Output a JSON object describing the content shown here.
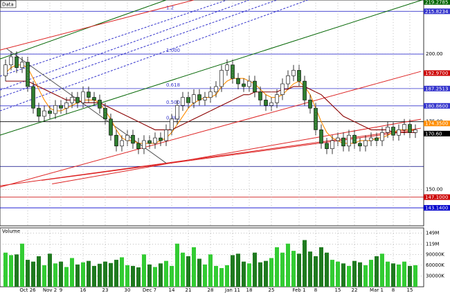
{
  "chart_data": {
    "type": "candlestick",
    "title": "Data",
    "categories": [
      null,
      null,
      null,
      null,
      "Oct 26",
      null,
      null,
      null,
      "Nov 2",
      null,
      "9",
      null,
      null,
      null,
      "16",
      null,
      null,
      null,
      "23",
      null,
      null,
      null,
      "30",
      null,
      null,
      null,
      "Dec 7",
      null,
      null,
      null,
      "14",
      null,
      null,
      "21",
      null,
      null,
      null,
      "28",
      null,
      null,
      null,
      "Jan 11",
      null,
      null,
      "18",
      null,
      null,
      null,
      "25",
      null,
      null,
      null,
      null,
      "Feb 1",
      null,
      null,
      "8",
      null,
      null,
      null,
      "15",
      null,
      null,
      "22",
      null,
      null,
      null,
      "Mar 1",
      null,
      null,
      "8",
      null,
      null,
      "15",
      null
    ],
    "open": [
      192,
      196,
      199,
      195,
      197,
      188,
      180,
      177,
      179,
      178,
      181,
      180,
      182,
      184,
      182,
      186,
      184,
      183,
      180,
      176,
      170,
      166,
      168,
      170,
      167,
      165,
      168,
      167,
      169,
      168,
      172,
      176,
      181,
      184,
      182,
      185,
      183,
      184,
      186,
      188,
      194,
      196,
      191,
      189,
      188,
      190,
      186,
      183,
      181,
      182,
      185,
      189,
      192,
      194,
      190,
      183,
      180,
      172,
      167,
      165,
      168,
      169,
      166,
      170,
      167,
      166,
      168,
      169,
      168,
      171,
      173,
      170,
      172,
      174,
      171
    ],
    "high": [
      198,
      201,
      201,
      199,
      199,
      190,
      182,
      181,
      181,
      183,
      183,
      184,
      186,
      186,
      188,
      188,
      186,
      185,
      182,
      178,
      172,
      170,
      172,
      172,
      169,
      170,
      170,
      171,
      171,
      174,
      178,
      183,
      186,
      186,
      187,
      187,
      186,
      188,
      190,
      196,
      198,
      198,
      193,
      191,
      192,
      192,
      188,
      185,
      184,
      187,
      191,
      194,
      196,
      196,
      192,
      185,
      182,
      174,
      169,
      170,
      171,
      171,
      172,
      172,
      169,
      170,
      171,
      171,
      173,
      175,
      175,
      174,
      176,
      176,
      174
    ],
    "low": [
      190,
      194,
      193,
      193,
      186,
      178,
      175,
      175,
      176,
      176,
      178,
      178,
      180,
      180,
      180,
      182,
      181,
      178,
      174,
      168,
      164,
      164,
      166,
      165,
      163,
      163,
      165,
      165,
      166,
      166,
      170,
      174,
      179,
      180,
      180,
      181,
      181,
      182,
      184,
      186,
      192,
      189,
      187,
      186,
      186,
      184,
      181,
      179,
      179,
      180,
      183,
      187,
      190,
      188,
      181,
      178,
      170,
      165,
      163,
      163,
      166,
      164,
      164,
      165,
      164,
      164,
      166,
      166,
      166,
      169,
      168,
      168,
      170,
      169,
      169
    ],
    "close": [
      196,
      199,
      195,
      197,
      188,
      180,
      177,
      179,
      178,
      181,
      180,
      182,
      184,
      182,
      186,
      184,
      183,
      180,
      176,
      170,
      166,
      168,
      170,
      167,
      165,
      168,
      167,
      169,
      168,
      172,
      176,
      181,
      184,
      182,
      185,
      183,
      184,
      186,
      188,
      194,
      196,
      191,
      189,
      188,
      190,
      186,
      183,
      181,
      182,
      185,
      189,
      192,
      194,
      190,
      183,
      180,
      172,
      167,
      165,
      168,
      169,
      166,
      170,
      167,
      166,
      168,
      169,
      168,
      171,
      173,
      170,
      172,
      174,
      171,
      172
    ],
    "up_color": "#ffffff",
    "down_color": "#2f7d2f",
    "ylim": [
      136.5,
      220
    ],
    "yticks": [
      {
        "value": 200,
        "label": "200.00"
      },
      {
        "value": 175,
        "label": "175.00"
      },
      {
        "value": 150,
        "label": "150.00"
      }
    ],
    "grid": true,
    "moving_averages": [
      {
        "color": "#ff8c00",
        "values": [
          193,
          195,
          196,
          196,
          195,
          191,
          187,
          183,
          180,
          179,
          179,
          180,
          181,
          182,
          183,
          183,
          183,
          182,
          179,
          176,
          172,
          169,
          168,
          168,
          167,
          167,
          167,
          167,
          168,
          169,
          171,
          174,
          177,
          180,
          182,
          183,
          184,
          184,
          185,
          188,
          190,
          191,
          191,
          191,
          190,
          189,
          187,
          185,
          184,
          184,
          185,
          187,
          189,
          190,
          188,
          185,
          180,
          175,
          171,
          169,
          168,
          167,
          167,
          167,
          168,
          168,
          168,
          169,
          169,
          170,
          171,
          172,
          172,
          172,
          172
        ]
      },
      {
        "color": "#8b0000",
        "values": [
          190,
          190,
          190,
          190,
          190,
          189,
          188,
          187,
          186,
          185,
          184,
          183,
          183,
          183,
          182,
          182,
          182,
          182,
          181,
          180,
          179,
          178,
          177,
          176,
          175,
          174,
          173,
          172,
          172,
          172,
          172,
          173,
          174,
          175,
          176,
          177,
          178,
          179,
          180,
          181,
          182,
          183,
          184,
          185,
          185,
          186,
          186,
          186,
          186,
          186,
          187,
          187,
          188,
          188,
          188,
          187,
          186,
          185,
          183,
          181,
          179,
          177,
          176,
          175,
          174,
          173,
          172,
          172,
          172,
          172,
          171,
          171,
          171,
          171,
          171
        ]
      }
    ],
    "lines": [
      {
        "color": "#006400",
        "style": "solid",
        "x": [
          -1,
          75.2
        ],
        "y": [
          170,
          220
        ]
      },
      {
        "color": "#006400",
        "style": "solid",
        "x": [
          -1,
          29
        ],
        "y": [
          198.2,
          220
        ]
      },
      {
        "color": "#dd2222",
        "style": "solid",
        "x": [
          -1,
          34
        ],
        "y": [
          201.5,
          220
        ]
      },
      {
        "color": "#dd2222",
        "style": "solid",
        "x": [
          -1,
          75
        ],
        "y": [
          150.8,
          193.6
        ]
      },
      {
        "color": "#dd2222",
        "style": "solid",
        "x": [
          -1,
          75
        ],
        "y": [
          151.3,
          172.6
        ]
      },
      {
        "color": "#dd2222",
        "style": "solid",
        "x": [
          8.4,
          75
        ],
        "y": [
          152,
          175.9
        ]
      },
      {
        "color": "#dd2222",
        "style": "solid",
        "x": [
          6.5,
          74
        ],
        "y": [
          153.3,
          171.8
        ]
      },
      {
        "color": "#3333cc",
        "style": "dashed",
        "x": [
          -1,
          54.6
        ],
        "y": [
          179,
          220
        ]
      },
      {
        "color": "#3333cc",
        "style": "dashed",
        "x": [
          -1,
          49
        ],
        "y": [
          184,
          220
        ]
      },
      {
        "color": "#3333cc",
        "style": "dashed",
        "x": [
          -1,
          44
        ],
        "y": [
          186.7,
          220
        ]
      },
      {
        "color": "#3333cc",
        "style": "dashed",
        "x": [
          -1,
          40
        ],
        "y": [
          191.8,
          220
        ]
      },
      {
        "color": "#555555",
        "style": "solid",
        "x": [
          0.2,
          29
        ],
        "y": [
          202,
          159.7
        ]
      }
    ],
    "levels": [
      {
        "value": 219.2785,
        "label": "219.2785",
        "color": "#006400",
        "line": false
      },
      {
        "value": 215.8234,
        "label": "215.8234",
        "color": "#3333cc",
        "line": true,
        "fib": "1.2"
      },
      {
        "value": 200,
        "color": "#3333cc",
        "line": true,
        "fib": "1.000"
      },
      {
        "value": 192.97,
        "label": "192.9700",
        "color": "#cc0000",
        "line": false
      },
      {
        "value": 187.2513,
        "label": "187.2513",
        "color": "#3333cc",
        "line": true,
        "fib": "0.618"
      },
      {
        "value": 180.86,
        "label": "180.8600",
        "color": "#3333cc",
        "line": true,
        "fib": "0.500"
      },
      {
        "value": 175,
        "color": "#000000",
        "line": true,
        "fib": "0.382"
      },
      {
        "value": 174.35,
        "label": "174.3500",
        "color": "#ff8c00",
        "line": false
      },
      {
        "value": 170.6,
        "label": "170.60",
        "color": "#000000",
        "line": false
      },
      {
        "value": 158.46,
        "color": "#000080",
        "line": true
      },
      {
        "value": 147.1,
        "label": "147.1000",
        "color": "#cc0000",
        "line": true
      },
      {
        "value": 143.14,
        "label": "143.1400",
        "color": "#0000cc",
        "line": true
      }
    ],
    "volume": {
      "title": "Volume",
      "up_color": "#33cc33",
      "down_color": "#1f7a1f",
      "values": [
        95,
        88,
        90,
        120,
        75,
        70,
        85,
        60,
        92,
        65,
        70,
        55,
        80,
        62,
        68,
        72,
        58,
        64,
        70,
        66,
        75,
        82,
        60,
        58,
        54,
        90,
        62,
        55,
        65,
        72,
        58,
        120,
        95,
        85,
        110,
        78,
        62,
        90,
        58,
        52,
        60,
        88,
        92,
        70,
        65,
        95,
        68,
        72,
        80,
        110,
        95,
        120,
        100,
        92,
        130,
        98,
        85,
        110,
        95,
        75,
        70,
        65,
        58,
        72,
        68,
        60,
        75,
        85,
        92,
        70,
        65,
        62,
        70,
        58,
        60
      ],
      "ylim": [
        0,
        160
      ],
      "yticks": [
        {
          "value": 30,
          "label": "30000K"
        },
        {
          "value": 60,
          "label": "60000K"
        },
        {
          "value": 90,
          "label": "90000K"
        },
        {
          "value": 119,
          "label": "119M"
        },
        {
          "value": 149,
          "label": "149M"
        }
      ]
    }
  }
}
